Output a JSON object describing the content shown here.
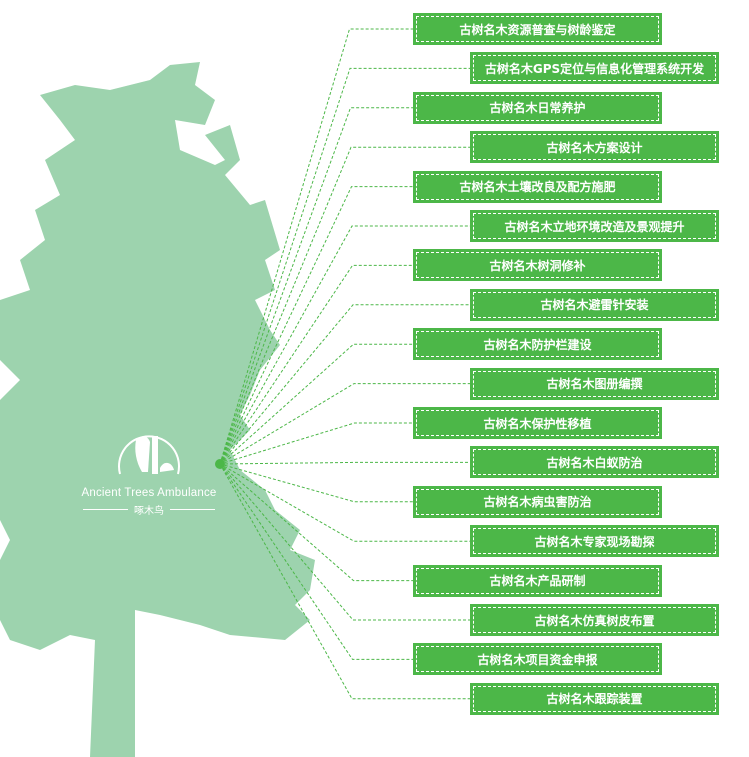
{
  "colors": {
    "tree": "#9dd3ae",
    "box": "#4cb748",
    "line": "#4cb748",
    "text": "#ffffff"
  },
  "logo": {
    "en": "Ancient Trees Ambulance",
    "cn": "啄木鸟",
    "icon": "woodpecker-on-trunk-icon"
  },
  "services": [
    "古树名木资源普查与树龄鉴定",
    "古树名木GPS定位与信息化管理系统开发",
    "古树名木日常养护",
    "古树名木方案设计",
    "古树名木土壤改良及配方施肥",
    "古树名木立地环境改造及景观提升",
    "古树名木树洞修补",
    "古树名木避雷针安装",
    "古树名木防护栏建设",
    "古树名木图册编撰",
    "古树名木保护性移植",
    "古树名木白蚁防治",
    "古树名木病虫害防治",
    "古树名木专家现场勘探",
    "古树名木产品研制",
    "古树名木仿真树皮布置",
    "古树名木项目资金申报",
    "古树名木跟踪装置"
  ]
}
